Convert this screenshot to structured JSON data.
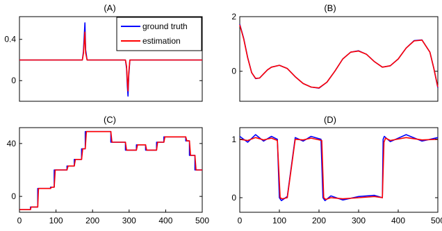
{
  "colors": {
    "ground_truth": "#0000ff",
    "estimation": "#ff0000"
  },
  "legend": {
    "ground_truth": "ground truth",
    "estimation": "estimation",
    "placement": "top-right (panel A)"
  },
  "chart_data": [
    {
      "panel": "A",
      "type": "line",
      "title": "(A)",
      "xlim": [
        0,
        500
      ],
      "ylim": [
        -0.2,
        0.62
      ],
      "yticks": [
        0,
        0.4
      ],
      "ytick_labels": [
        "0",
        "0.4"
      ],
      "xticks": [],
      "xtick_labels": [],
      "grid": false,
      "series": [
        {
          "name": "ground truth",
          "x": [
            0,
            172,
            175,
            177,
            179,
            181,
            185,
            290,
            293,
            295,
            297,
            299,
            302,
            500
          ],
          "y": [
            0.2,
            0.2,
            0.28,
            0.42,
            0.56,
            0.3,
            0.2,
            0.2,
            0.12,
            -0.05,
            -0.15,
            0.05,
            0.2,
            0.2
          ]
        },
        {
          "name": "estimation",
          "x": [
            0,
            172,
            175,
            177,
            179,
            181,
            185,
            290,
            293,
            295,
            297,
            299,
            302,
            500
          ],
          "y": [
            0.2,
            0.2,
            0.26,
            0.36,
            0.47,
            0.27,
            0.2,
            0.2,
            0.14,
            0.0,
            -0.1,
            0.08,
            0.2,
            0.2
          ]
        }
      ]
    },
    {
      "panel": "B",
      "type": "line",
      "title": "(B)",
      "xlim": [
        0,
        500
      ],
      "ylim": [
        -1.1,
        2.0
      ],
      "yticks": [
        0,
        2
      ],
      "ytick_labels": [
        "0",
        "2"
      ],
      "xticks": [],
      "xtick_labels": [],
      "grid": false,
      "series": [
        {
          "name": "ground truth",
          "x": [
            0,
            10,
            20,
            30,
            40,
            50,
            60,
            70,
            80,
            100,
            120,
            140,
            160,
            180,
            200,
            220,
            240,
            260,
            280,
            300,
            320,
            340,
            360,
            380,
            400,
            420,
            440,
            460,
            480,
            490,
            500
          ],
          "y": [
            1.72,
            1.2,
            0.5,
            -0.05,
            -0.27,
            -0.25,
            -0.1,
            0.05,
            0.15,
            0.22,
            0.1,
            -0.2,
            -0.45,
            -0.58,
            -0.62,
            -0.4,
            0.0,
            0.45,
            0.7,
            0.75,
            0.62,
            0.35,
            0.15,
            0.2,
            0.45,
            0.85,
            1.12,
            1.15,
            0.7,
            0.1,
            -0.6
          ]
        },
        {
          "name": "estimation",
          "x": [
            0,
            10,
            20,
            30,
            40,
            50,
            60,
            70,
            80,
            100,
            120,
            140,
            160,
            180,
            200,
            220,
            240,
            260,
            280,
            300,
            320,
            340,
            360,
            380,
            400,
            420,
            440,
            460,
            480,
            490,
            500
          ],
          "y": [
            1.7,
            1.18,
            0.49,
            -0.05,
            -0.26,
            -0.25,
            -0.1,
            0.05,
            0.15,
            0.22,
            0.1,
            -0.2,
            -0.45,
            -0.58,
            -0.61,
            -0.4,
            0.0,
            0.45,
            0.7,
            0.74,
            0.62,
            0.35,
            0.15,
            0.2,
            0.45,
            0.85,
            1.11,
            1.14,
            0.7,
            0.1,
            -0.58
          ]
        }
      ]
    },
    {
      "panel": "C",
      "type": "line",
      "title": "(C)",
      "xlim": [
        0,
        500
      ],
      "ylim": [
        -12,
        52
      ],
      "yticks": [
        0,
        40
      ],
      "ytick_labels": [
        "0",
        "40"
      ],
      "xticks": [
        0,
        100,
        200,
        300,
        400,
        500
      ],
      "xtick_labels": [
        "0",
        "100",
        "200",
        "300",
        "400",
        "500"
      ],
      "grid": false,
      "series": [
        {
          "name": "ground truth",
          "x": [
            0,
            30,
            30,
            50,
            50,
            85,
            85,
            95,
            95,
            130,
            130,
            150,
            150,
            170,
            170,
            180,
            180,
            250,
            250,
            290,
            290,
            320,
            320,
            345,
            345,
            375,
            375,
            395,
            395,
            455,
            455,
            465,
            465,
            480,
            480,
            500
          ],
          "y": [
            -10,
            -10,
            -8,
            -8,
            6,
            6,
            7,
            7,
            20,
            20,
            23,
            23,
            28,
            28,
            36,
            36,
            49,
            49,
            41,
            41,
            35,
            35,
            39,
            39,
            35,
            35,
            41,
            41,
            45,
            45,
            42,
            42,
            31,
            31,
            20,
            20
          ]
        },
        {
          "name": "estimation",
          "x": [
            0,
            30,
            32,
            50,
            52,
            85,
            88,
            95,
            98,
            130,
            133,
            150,
            153,
            170,
            173,
            180,
            183,
            250,
            253,
            290,
            293,
            320,
            323,
            345,
            348,
            375,
            378,
            395,
            398,
            455,
            458,
            465,
            468,
            480,
            483,
            500
          ],
          "y": [
            -10,
            -10,
            -8,
            -8,
            6,
            6,
            7,
            7,
            20,
            20,
            23,
            23,
            28,
            28,
            36,
            36,
            49,
            49,
            41,
            41,
            35,
            35,
            39,
            39,
            35,
            35,
            41,
            41,
            45,
            45,
            42,
            42,
            31,
            31,
            20,
            20
          ]
        }
      ]
    },
    {
      "panel": "D",
      "type": "line",
      "title": "(D)",
      "xlim": [
        0,
        500
      ],
      "ylim": [
        -0.25,
        1.2
      ],
      "yticks": [
        0,
        1
      ],
      "ytick_labels": [
        "0",
        "1"
      ],
      "xticks": [
        0,
        100,
        200,
        300,
        400,
        500
      ],
      "xtick_labels": [
        "0",
        "100",
        "200",
        "300",
        "400",
        "500"
      ],
      "grid": false,
      "series": [
        {
          "name": "ground truth",
          "x": [
            0,
            20,
            40,
            60,
            80,
            95,
            100,
            105,
            120,
            140,
            160,
            180,
            205,
            210,
            215,
            230,
            260,
            300,
            340,
            360,
            362,
            365,
            380,
            420,
            460,
            500
          ],
          "y": [
            1.05,
            0.95,
            1.08,
            0.97,
            1.05,
            1.0,
            0.0,
            -0.05,
            0.02,
            1.03,
            0.97,
            1.05,
            1.0,
            0.0,
            -0.05,
            0.03,
            -0.04,
            0.02,
            0.04,
            0.0,
            1.0,
            1.05,
            0.96,
            1.08,
            0.97,
            1.03
          ]
        },
        {
          "name": "estimation",
          "x": [
            0,
            20,
            40,
            60,
            80,
            95,
            102,
            107,
            120,
            140,
            160,
            180,
            207,
            212,
            217,
            230,
            260,
            300,
            340,
            360,
            364,
            368,
            380,
            420,
            460,
            500
          ],
          "y": [
            1.0,
            0.98,
            1.03,
            0.99,
            1.02,
            0.98,
            0.0,
            -0.02,
            0.0,
            1.0,
            0.99,
            1.02,
            0.98,
            0.0,
            -0.03,
            0.0,
            -0.02,
            0.0,
            0.02,
            0.0,
            0.95,
            1.02,
            0.98,
            1.03,
            0.99,
            1.0
          ]
        }
      ]
    }
  ]
}
